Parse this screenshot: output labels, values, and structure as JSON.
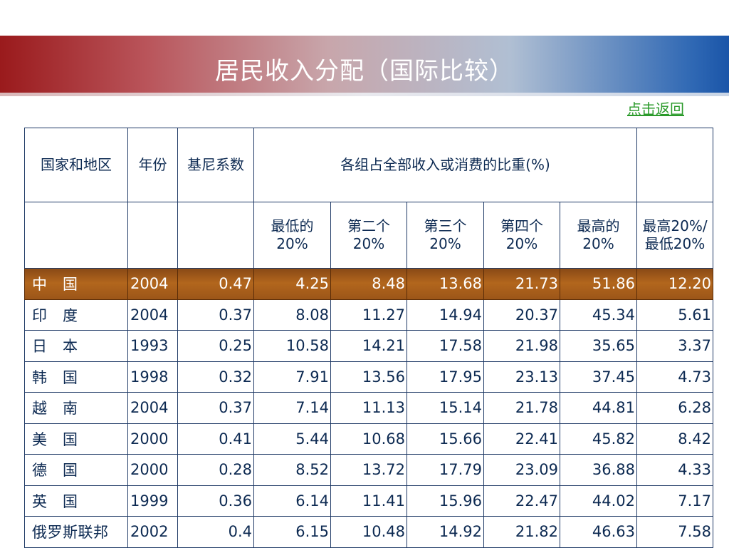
{
  "title": "居民收入分配（国际比较）",
  "back_link": "点击返回",
  "table": {
    "header1": {
      "country": "国家和地区",
      "year": "年份",
      "gini": "基尼系数",
      "group": "各组占全部收入或消费的比重(%)",
      "ratio": ""
    },
    "header2": [
      "最低的20%",
      "第二个20%",
      "第三个20%",
      "第四个20%",
      "最高的20%",
      "最高20%/最低20%"
    ],
    "rows": [
      {
        "country": "中　国",
        "year": "2004",
        "gini": "0.47",
        "q1": "4.25",
        "q2": "8.48",
        "q3": "13.68",
        "q4": "21.73",
        "q5": "51.86",
        "ratio": "12.20"
      },
      {
        "country": "印　度",
        "year": "2004",
        "gini": "0.37",
        "q1": "8.08",
        "q2": "11.27",
        "q3": "14.94",
        "q4": "20.37",
        "q5": "45.34",
        "ratio": "5.61"
      },
      {
        "country": "日　本",
        "year": "1993",
        "gini": "0.25",
        "q1": "10.58",
        "q2": "14.21",
        "q3": "17.58",
        "q4": "21.98",
        "q5": "35.65",
        "ratio": "3.37"
      },
      {
        "country": "韩　国",
        "year": "1998",
        "gini": "0.32",
        "q1": "7.91",
        "q2": "13.56",
        "q3": "17.95",
        "q4": "23.13",
        "q5": "37.45",
        "ratio": "4.73"
      },
      {
        "country": "越　南",
        "year": "2004",
        "gini": "0.37",
        "q1": "7.14",
        "q2": "11.13",
        "q3": "15.14",
        "q4": "21.78",
        "q5": "44.81",
        "ratio": "6.28"
      },
      {
        "country": "美　国",
        "year": "2000",
        "gini": "0.41",
        "q1": "5.44",
        "q2": "10.68",
        "q3": "15.66",
        "q4": "22.41",
        "q5": "45.82",
        "ratio": "8.42"
      },
      {
        "country": "德　国",
        "year": "2000",
        "gini": "0.28",
        "q1": "8.52",
        "q2": "13.72",
        "q3": "17.79",
        "q4": "23.09",
        "q5": "36.88",
        "ratio": "4.33"
      },
      {
        "country": "英　国",
        "year": "1999",
        "gini": "0.36",
        "q1": "6.14",
        "q2": "11.41",
        "q3": "15.96",
        "q4": "22.47",
        "q5": "44.02",
        "ratio": "7.17"
      },
      {
        "country": "俄罗斯联邦",
        "year": "2002",
        "gini": "0.4",
        "q1": "6.15",
        "q2": "10.48",
        "q3": "14.92",
        "q4": "21.82",
        "q5": "46.63",
        "ratio": "7.58"
      }
    ]
  }
}
